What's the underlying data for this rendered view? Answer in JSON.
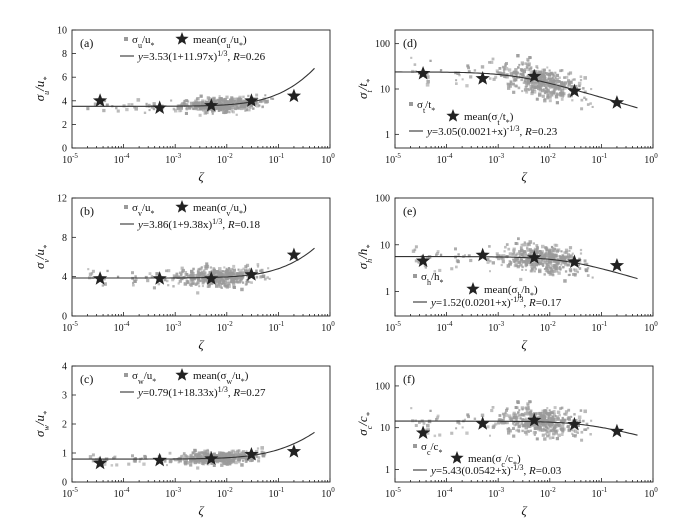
{
  "chart_data": [
    {
      "panel": "(a)",
      "type": "scatter",
      "yscale": "linear",
      "xlabel": "ζ",
      "ylabel": "σu/u*",
      "xlim": [
        1e-05,
        1
      ],
      "ylim": [
        0,
        10
      ],
      "yticks": [
        0,
        2,
        4,
        6,
        8,
        10
      ],
      "legend_scatter": "σu/u*",
      "legend_star": "mean(σu/u*)",
      "fit_label": "y=3.53(1+11.97x)1/3, R=0.26",
      "fit": {
        "a": 3.53,
        "b": 11.97,
        "form": "a(1+bx)^(1/3)"
      },
      "means": {
        "x": [
          3.5e-05,
          0.0005,
          0.005,
          0.03,
          0.2
        ],
        "y": [
          4.0,
          3.4,
          3.6,
          4.0,
          4.4
        ]
      },
      "scatter_center": 3.6,
      "scatter_spread": 0.7
    },
    {
      "panel": "(b)",
      "type": "scatter",
      "yscale": "linear",
      "xlabel": "ζ",
      "ylabel": "σv/u*",
      "xlim": [
        1e-05,
        1
      ],
      "ylim": [
        0,
        12
      ],
      "yticks": [
        0,
        4,
        8,
        12
      ],
      "legend_scatter": "σv/u*",
      "legend_star": "mean(σv/u*)",
      "fit_label": "y=3.86(1+9.38x)1/3, R=0.18",
      "fit": {
        "a": 3.86,
        "b": 9.38,
        "form": "a(1+bx)^(1/3)"
      },
      "means": {
        "x": [
          3.5e-05,
          0.0005,
          0.005,
          0.03,
          0.2
        ],
        "y": [
          3.8,
          3.8,
          3.8,
          4.2,
          6.2
        ]
      },
      "scatter_center": 3.9,
      "scatter_spread": 1.2
    },
    {
      "panel": "(c)",
      "type": "scatter",
      "yscale": "linear",
      "xlabel": "ζ",
      "ylabel": "σw/u*",
      "xlim": [
        1e-05,
        1
      ],
      "ylim": [
        0,
        4
      ],
      "yticks": [
        0,
        1,
        2,
        3,
        4
      ],
      "legend_scatter": "σw/u*",
      "legend_star": "mean(σw/u*)",
      "fit_label": "y=0.79(1+18.33x)1/3, R=0.27",
      "fit": {
        "a": 0.79,
        "b": 18.33,
        "form": "a(1+bx)^(1/3)"
      },
      "means": {
        "x": [
          3.5e-05,
          0.0005,
          0.005,
          0.03,
          0.2
        ],
        "y": [
          0.65,
          0.75,
          0.8,
          0.95,
          1.05
        ]
      },
      "scatter_center": 0.85,
      "scatter_spread": 0.25
    },
    {
      "panel": "(d)",
      "type": "scatter",
      "yscale": "log",
      "xlabel": "ζ",
      "ylabel": "σt/t*",
      "xlim": [
        1e-05,
        1
      ],
      "ylim": [
        0.5,
        200
      ],
      "yticks": [
        1,
        10,
        100
      ],
      "legend_scatter": "σt/t*",
      "legend_star": "mean(σt/t*)",
      "fit_label": "y=3.05(0.0021+x)-1/3, R=0.23",
      "fit": {
        "a": 3.05,
        "b": 0.0021,
        "form": "a(b+x)^(-1/3)"
      },
      "means": {
        "x": [
          3.5e-05,
          0.0005,
          0.005,
          0.03,
          0.2
        ],
        "y": [
          22,
          17,
          19,
          9,
          5
        ]
      },
      "scatter_center": 10,
      "scatter_spread": 0.45
    },
    {
      "panel": "(e)",
      "type": "scatter",
      "yscale": "log",
      "xlabel": "ζ",
      "ylabel": "σh/h*",
      "xlim": [
        1e-05,
        1
      ],
      "ylim": [
        0.3,
        100
      ],
      "yticks": [
        1,
        10,
        100
      ],
      "legend_scatter": "σh/h*",
      "legend_star": "mean(σh/h*)",
      "fit_label": "y=1.52(0.0201+x)-1/3, R=0.17",
      "fit": {
        "a": 1.52,
        "b": 0.0201,
        "form": "a(b+x)^(-1/3)"
      },
      "means": {
        "x": [
          3.5e-05,
          0.0005,
          0.005,
          0.03,
          0.2
        ],
        "y": [
          4.5,
          6.0,
          5.3,
          4.3,
          3.6
        ]
      },
      "scatter_center": 4.5,
      "scatter_spread": 0.4
    },
    {
      "panel": "(f)",
      "type": "scatter",
      "yscale": "log",
      "xlabel": "ζ",
      "ylabel": "σc/c*",
      "xlim": [
        1e-05,
        1
      ],
      "ylim": [
        0.5,
        300
      ],
      "yticks": [
        1,
        10,
        100
      ],
      "legend_scatter": "σc/c*",
      "legend_star": "mean(σc/c*)",
      "fit_label": "y=5.43(0.0542+x)-1/3, R=0.03",
      "fit": {
        "a": 5.43,
        "b": 0.0542,
        "form": "a(b+x)^(-1/3)"
      },
      "means": {
        "x": [
          3.5e-05,
          0.0005,
          0.005,
          0.03,
          0.2
        ],
        "y": [
          7.5,
          12.5,
          15,
          12,
          8.2
        ]
      },
      "scatter_center": 12,
      "scatter_spread": 0.45
    }
  ],
  "colors": {
    "scatter": "#9a9a9a",
    "star": "#222222",
    "line": "#333333"
  }
}
